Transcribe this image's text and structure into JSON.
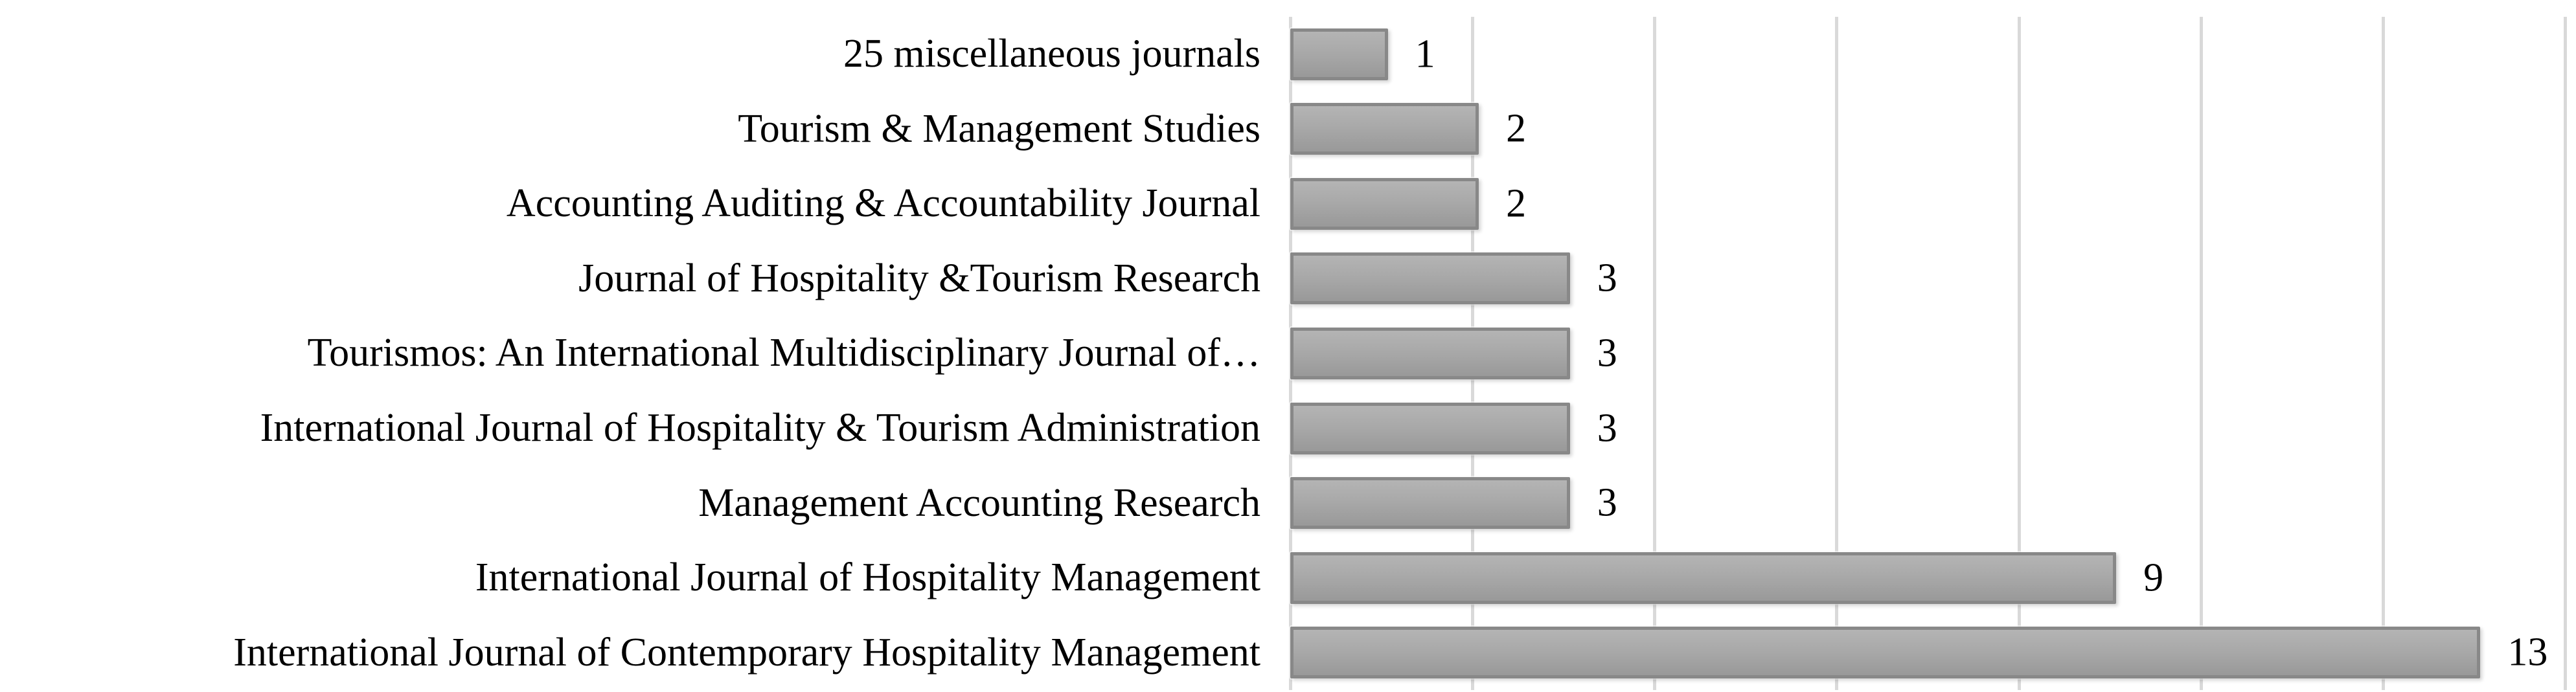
{
  "figure": {
    "title": ""
  },
  "chart_data": {
    "type": "bar",
    "orientation": "horizontal",
    "title": "",
    "xlabel": "",
    "ylabel": "",
    "categories": [
      "25 miscellaneous journals",
      "Tourism & Management Studies",
      "Accounting Auditing & Accountability Journal",
      "Journal of Hospitality &Tourism Research",
      "Tourismos: An International Multidisciplinary Journal of…",
      "International Journal of Hospitality & Tourism Administration",
      "Management Accounting Research",
      "International Journal of Hospitality Management",
      "International Journal of Contemporary Hospitality Management"
    ],
    "values": [
      1,
      2,
      2,
      3,
      3,
      3,
      3,
      9,
      13
    ],
    "data_labels": [
      1,
      2,
      2,
      3,
      3,
      3,
      3,
      9,
      13
    ],
    "xlim": [
      0,
      14
    ],
    "gridlines": [
      0,
      2,
      4,
      6,
      8,
      10,
      12,
      14
    ],
    "grid": true,
    "legend": false,
    "axis_tick_labels_visible": false,
    "colors": {
      "bar_fill_light": "#b4b4b4",
      "bar_fill_dark": "#999999",
      "bar_border": "#888888",
      "gridline": "#d9d9d9",
      "text": "#000000",
      "background": "#ffffff"
    }
  }
}
